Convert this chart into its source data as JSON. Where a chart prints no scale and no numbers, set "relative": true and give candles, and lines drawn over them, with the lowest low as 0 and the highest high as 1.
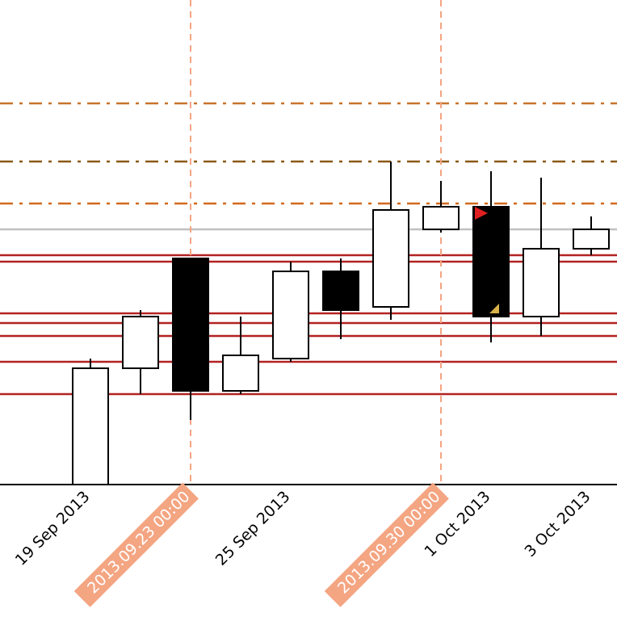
{
  "chart_data": {
    "type": "candlestick",
    "relative": true,
    "categories": [
      "19 Sep 2013",
      null,
      "2013.09.23 00:00",
      null,
      "25 Sep 2013",
      null,
      null,
      "2013.09.30 00:00",
      "1 Oct 2013",
      null,
      "3 Oct 2013"
    ],
    "ohlc": [
      [
        0,
        0.39,
        0,
        0.36
      ],
      [
        0.36,
        0.54,
        0.28,
        0.52
      ],
      [
        0.7,
        0.7,
        0.2,
        0.29
      ],
      [
        0.29,
        0.52,
        0.28,
        0.4
      ],
      [
        0.39,
        0.69,
        0.38,
        0.66
      ],
      [
        0.66,
        0.7,
        0.45,
        0.54
      ],
      [
        0.55,
        1,
        0.51,
        0.85
      ],
      [
        0.79,
        0.94,
        0.78,
        0.86
      ],
      [
        0.86,
        0.97,
        0.44,
        0.52
      ],
      [
        0.52,
        0.95,
        0.46,
        0.73
      ],
      [
        0.73,
        0.83,
        0.71,
        0.79
      ]
    ],
    "ref_lines": [
      {
        "axis": "y",
        "value": 1.18,
        "color": "#c8742c",
        "line_style": "dashdot"
      },
      {
        "axis": "y",
        "value": 1.0,
        "color": "#8b5a14",
        "line_style": "dashdot"
      },
      {
        "axis": "y",
        "value": 0.87,
        "color": "#d2691e",
        "line_style": "dashdot"
      },
      {
        "axis": "y",
        "value": 0.79,
        "color": "#c0c0c0",
        "line_style": "solid"
      },
      {
        "axis": "y",
        "value": 0.71,
        "color": "#b22222",
        "line_style": "solid"
      },
      {
        "axis": "y",
        "value": 0.69,
        "color": "#b22222",
        "line_style": "solid"
      },
      {
        "axis": "y",
        "value": 0.53,
        "color": "#b22222",
        "line_style": "solid"
      },
      {
        "axis": "y",
        "value": 0.5,
        "color": "#b22222",
        "line_style": "solid"
      },
      {
        "axis": "y",
        "value": 0.46,
        "color": "#b22222",
        "line_style": "solid"
      },
      {
        "axis": "y",
        "value": 0.38,
        "color": "#b22222",
        "line_style": "solid"
      },
      {
        "axis": "y",
        "value": 0.28,
        "color": "#b22222",
        "line_style": "solid"
      },
      {
        "axis": "x",
        "value": "2013.09.23 00:00",
        "color": "#f4a582",
        "line_style": "dashed"
      },
      {
        "axis": "x",
        "value": "2013.09.30 00:00",
        "color": "#f4a582",
        "line_style": "dashed"
      }
    ]
  }
}
